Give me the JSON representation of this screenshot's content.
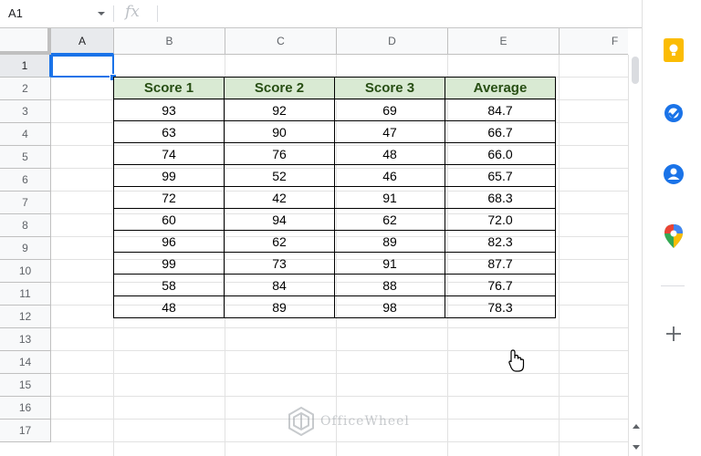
{
  "formula_bar": {
    "cell_reference": "A1",
    "fx_label": "fx",
    "formula": ""
  },
  "grid": {
    "columns": [
      "A",
      "B",
      "C",
      "D",
      "E",
      "F"
    ],
    "rows": [
      "1",
      "2",
      "3",
      "4",
      "5",
      "6",
      "7",
      "8",
      "9",
      "10",
      "11",
      "12",
      "13",
      "14",
      "15",
      "16",
      "17"
    ],
    "selected_cell": "A1"
  },
  "table": {
    "headers": [
      "Score 1",
      "Score 2",
      "Score 3",
      "Average"
    ],
    "rows": [
      [
        "93",
        "92",
        "69",
        "84.7"
      ],
      [
        "63",
        "90",
        "47",
        "66.7"
      ],
      [
        "74",
        "76",
        "48",
        "66.0"
      ],
      [
        "99",
        "52",
        "46",
        "65.7"
      ],
      [
        "72",
        "42",
        "91",
        "68.3"
      ],
      [
        "60",
        "94",
        "62",
        "72.0"
      ],
      [
        "96",
        "62",
        "89",
        "82.3"
      ],
      [
        "99",
        "73",
        "91",
        "87.7"
      ],
      [
        "58",
        "84",
        "88",
        "76.7"
      ],
      [
        "48",
        "89",
        "98",
        "78.3"
      ]
    ],
    "header_bg": "#d9ead3",
    "header_text_color": "#274e13"
  },
  "watermark": {
    "text": "OfficeWheel"
  },
  "side_panel": {
    "icons": [
      "keep-icon",
      "tasks-icon",
      "contacts-icon",
      "maps-icon",
      "add-icon"
    ]
  },
  "colors": {
    "selection": "#1a73e8"
  }
}
